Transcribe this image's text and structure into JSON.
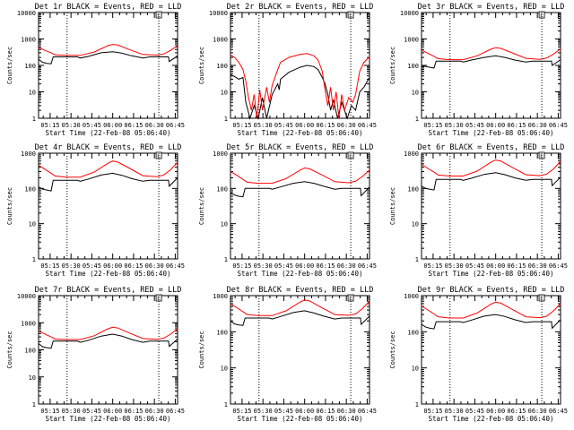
{
  "chart_data": [
    {
      "type": "line",
      "title": "Det 1r BLACK = Events, RED = LLD",
      "ylabel": "Counts/sec",
      "xlabel": "Start Time (22-Feb-08 05:06:40)",
      "x_ticks": [
        "05:15",
        "05:30",
        "05:45",
        "06:00",
        "06:15",
        "06:30",
        "06:45"
      ],
      "y_ticks": [
        "1",
        "10",
        "100",
        "1000",
        "10000"
      ],
      "yscale": "log",
      "ylim": [
        1,
        10000
      ],
      "xlim_minutes": [
        0,
        100
      ],
      "vlines_minutes": [
        20.5,
        86.5
      ],
      "marker": "E",
      "series": [
        {
          "name": "Events",
          "color": "#000000",
          "x": [
            0,
            3,
            6,
            9,
            10.5,
            20.5,
            28,
            30,
            36,
            45,
            53.3,
            60,
            67,
            75,
            80,
            86.5,
            93.5,
            94,
            100
          ],
          "y": [
            170,
            130,
            120,
            115,
            210,
            210,
            210,
            190,
            220,
            300,
            330,
            290,
            230,
            190,
            210,
            210,
            210,
            140,
            230
          ]
        },
        {
          "name": "LLD",
          "color": "#ff0000",
          "x": [
            0,
            5,
            9,
            12,
            20,
            30,
            40,
            50,
            53.3,
            57,
            65,
            75,
            85,
            90,
            95,
            100
          ],
          "y": [
            480,
            360,
            300,
            250,
            240,
            240,
            320,
            560,
            620,
            590,
            400,
            260,
            245,
            270,
            370,
            560
          ]
        }
      ]
    },
    {
      "type": "line",
      "title": "Det 2r BLACK = Events, RED = LLD",
      "ylabel": "Counts/sec",
      "xlabel": "Start Time (22-Feb-08 05:06:40)",
      "x_ticks": [
        "05:15",
        "05:30",
        "05:45",
        "06:00",
        "06:15",
        "06:30",
        "06:45"
      ],
      "y_ticks": [
        "1",
        "10",
        "100",
        "1000",
        "10000"
      ],
      "yscale": "log",
      "ylim": [
        1,
        10000
      ],
      "xlim_minutes": [
        0,
        100
      ],
      "vlines_minutes": [
        20.5,
        86.5
      ],
      "marker": "E",
      "series": [
        {
          "name": "Events",
          "color": "#000000",
          "x": [
            0,
            3,
            6,
            9,
            10,
            11,
            14,
            17,
            20,
            23,
            26,
            30,
            34,
            35,
            36,
            42,
            50,
            55,
            60,
            63,
            66,
            68,
            70,
            72,
            74,
            77,
            80,
            84,
            87,
            90,
            93,
            96,
            100
          ],
          "y": [
            45,
            38,
            30,
            35,
            12,
            4,
            1,
            3,
            1,
            6,
            1,
            8,
            20,
            12,
            30,
            55,
            85,
            100,
            90,
            70,
            35,
            20,
            8,
            2,
            5,
            1,
            4,
            1,
            3,
            2,
            10,
            15,
            35
          ]
        },
        {
          "name": "LLD",
          "color": "#ff0000",
          "x": [
            0,
            3,
            6,
            9,
            11,
            13,
            15,
            17,
            19,
            21,
            23,
            26,
            28,
            30,
            32,
            34,
            36,
            42,
            50,
            55,
            60,
            63,
            66,
            68,
            70,
            72,
            74,
            76,
            78,
            80,
            82,
            85,
            88,
            90,
            93,
            96,
            100
          ],
          "y": [
            250,
            200,
            130,
            70,
            25,
            6,
            2,
            8,
            1,
            12,
            2,
            15,
            4,
            18,
            35,
            70,
            130,
            200,
            260,
            280,
            230,
            160,
            60,
            12,
            3,
            15,
            2,
            10,
            1,
            8,
            2,
            6,
            4,
            8,
            60,
            130,
            210
          ]
        }
      ]
    },
    {
      "type": "line",
      "title": "Det 3r BLACK = Events, RED = LLD",
      "ylabel": "Counts/sec",
      "xlabel": "Start Time (22-Feb-08 05:06:40)",
      "x_ticks": [
        "05:15",
        "05:30",
        "05:45",
        "06:00",
        "06:15",
        "06:30",
        "06:45"
      ],
      "y_ticks": [
        "1",
        "10",
        "100",
        "1000",
        "10000"
      ],
      "yscale": "log",
      "ylim": [
        1,
        10000
      ],
      "xlim_minutes": [
        0,
        100
      ],
      "vlines_minutes": [
        20.5,
        86.5
      ],
      "marker": "E",
      "series": [
        {
          "name": "Events",
          "color": "#000000",
          "x": [
            0,
            3,
            6,
            9,
            10.5,
            20.5,
            28,
            30,
            36,
            45,
            53.3,
            60,
            67,
            75,
            80,
            86.5,
            93.5,
            94,
            100
          ],
          "y": [
            100,
            90,
            85,
            80,
            145,
            145,
            145,
            135,
            160,
            200,
            230,
            200,
            160,
            135,
            145,
            145,
            145,
            100,
            165
          ]
        },
        {
          "name": "LLD",
          "color": "#ff0000",
          "x": [
            0,
            5,
            9,
            12,
            20,
            30,
            40,
            50,
            53.3,
            57,
            65,
            75,
            85,
            90,
            95,
            100
          ],
          "y": [
            380,
            280,
            220,
            180,
            165,
            165,
            230,
            410,
            470,
            440,
            300,
            185,
            170,
            190,
            270,
            420
          ]
        }
      ]
    },
    {
      "type": "line",
      "title": "Det 4r BLACK = Events, RED = LLD",
      "ylabel": "Counts/sec",
      "xlabel": "Start Time (22-Feb-08 05:06:40)",
      "x_ticks": [
        "05:15",
        "05:30",
        "05:45",
        "06:00",
        "06:15",
        "06:30",
        "06:45"
      ],
      "y_ticks": [
        "1",
        "10",
        "100",
        "1000"
      ],
      "yscale": "log",
      "ylim": [
        1,
        1000
      ],
      "xlim_minutes": [
        0,
        100
      ],
      "vlines_minutes": [
        20.5,
        86.5
      ],
      "marker": "E",
      "series": [
        {
          "name": "Events",
          "color": "#000000",
          "x": [
            0,
            3,
            6,
            9,
            10.5,
            20.5,
            28,
            30,
            36,
            45,
            53.3,
            60,
            67,
            75,
            80,
            86.5,
            93.5,
            94,
            100
          ],
          "y": [
            110,
            95,
            90,
            85,
            170,
            170,
            170,
            160,
            185,
            240,
            270,
            235,
            190,
            160,
            170,
            170,
            170,
            115,
            200
          ]
        },
        {
          "name": "LLD",
          "color": "#ff0000",
          "x": [
            0,
            5,
            9,
            12,
            20,
            30,
            40,
            50,
            53.3,
            57,
            65,
            75,
            85,
            90,
            95,
            100
          ],
          "y": [
            450,
            340,
            270,
            225,
            210,
            210,
            290,
            520,
            600,
            560,
            380,
            230,
            215,
            240,
            340,
            550
          ]
        }
      ]
    },
    {
      "type": "line",
      "title": "Det 5r BLACK = Events, RED = LLD",
      "ylabel": "Counts/sec",
      "xlabel": "Start Time (22-Feb-08 05:06:40)",
      "x_ticks": [
        "05:15",
        "05:30",
        "05:45",
        "06:00",
        "06:15",
        "06:30",
        "06:45"
      ],
      "y_ticks": [
        "1",
        "10",
        "100",
        "1000"
      ],
      "yscale": "log",
      "ylim": [
        1,
        1000
      ],
      "xlim_minutes": [
        0,
        100
      ],
      "vlines_minutes": [
        20.5,
        86.5
      ],
      "marker": "E",
      "series": [
        {
          "name": "Events",
          "color": "#000000",
          "x": [
            0,
            3,
            6,
            9,
            10.5,
            20.5,
            28,
            30,
            36,
            45,
            53.3,
            60,
            67,
            75,
            80,
            86.5,
            93.5,
            94,
            100
          ],
          "y": [
            75,
            65,
            60,
            58,
            100,
            100,
            100,
            95,
            110,
            140,
            155,
            140,
            115,
            95,
            100,
            100,
            100,
            62,
            110
          ]
        },
        {
          "name": "LLD",
          "color": "#ff0000",
          "x": [
            0,
            5,
            9,
            12,
            20,
            30,
            40,
            50,
            53.3,
            57,
            65,
            75,
            85,
            90,
            95,
            100
          ],
          "y": [
            300,
            230,
            180,
            150,
            140,
            140,
            190,
            330,
            380,
            360,
            250,
            155,
            145,
            160,
            220,
            330
          ]
        }
      ]
    },
    {
      "type": "line",
      "title": "Det 6r BLACK = Events, RED = LLD",
      "ylabel": "Counts/sec",
      "xlabel": "Start Time (22-Feb-08 05:06:40)",
      "x_ticks": [
        "05:15",
        "05:30",
        "05:45",
        "06:00",
        "06:15",
        "06:30",
        "06:45"
      ],
      "y_ticks": [
        "1",
        "10",
        "100",
        "1000"
      ],
      "yscale": "log",
      "ylim": [
        1,
        1000
      ],
      "xlim_minutes": [
        0,
        100
      ],
      "vlines_minutes": [
        20.5,
        86.5
      ],
      "marker": "E",
      "series": [
        {
          "name": "Events",
          "color": "#000000",
          "x": [
            0,
            3,
            6,
            9,
            10.5,
            20.5,
            28,
            30,
            36,
            45,
            53.3,
            60,
            67,
            75,
            80,
            86.5,
            93.5,
            94,
            100
          ],
          "y": [
            115,
            100,
            95,
            90,
            180,
            180,
            180,
            170,
            195,
            250,
            280,
            245,
            200,
            170,
            180,
            180,
            180,
            120,
            210
          ]
        },
        {
          "name": "LLD",
          "color": "#ff0000",
          "x": [
            0,
            5,
            9,
            12,
            20,
            30,
            40,
            50,
            53.3,
            57,
            65,
            75,
            85,
            90,
            95,
            100
          ],
          "y": [
            480,
            360,
            290,
            240,
            225,
            225,
            310,
            560,
            640,
            600,
            400,
            245,
            230,
            255,
            360,
            590
          ]
        }
      ]
    },
    {
      "type": "line",
      "title": "Det 7r BLACK = Events, RED = LLD",
      "ylabel": "Counts/sec",
      "xlabel": "Start Time (22-Feb-08 05:06:40)",
      "x_ticks": [
        "05:15",
        "05:30",
        "05:45",
        "06:00",
        "06:15",
        "06:30",
        "06:45"
      ],
      "y_ticks": [
        "1",
        "10",
        "100",
        "1000",
        "10000"
      ],
      "yscale": "log",
      "ylim": [
        1,
        10000
      ],
      "xlim_minutes": [
        0,
        100
      ],
      "vlines_minutes": [
        20.5,
        86.5
      ],
      "marker": "E",
      "series": [
        {
          "name": "Events",
          "color": "#000000",
          "x": [
            0,
            3,
            6,
            9,
            10.5,
            20.5,
            28,
            30,
            36,
            45,
            53.3,
            60,
            67,
            75,
            80,
            86.5,
            93.5,
            94,
            100
          ],
          "y": [
            170,
            130,
            120,
            115,
            210,
            210,
            210,
            190,
            225,
            320,
            380,
            320,
            240,
            190,
            210,
            210,
            210,
            135,
            250
          ]
        },
        {
          "name": "LLD",
          "color": "#ff0000",
          "x": [
            0,
            5,
            9,
            12,
            20,
            30,
            40,
            50,
            53.3,
            57,
            65,
            75,
            85,
            90,
            95,
            100
          ],
          "y": [
            500,
            370,
            300,
            250,
            240,
            240,
            330,
            600,
            680,
            640,
            420,
            260,
            245,
            270,
            380,
            600
          ]
        }
      ]
    },
    {
      "type": "line",
      "title": "Det 8r BLACK = Events, RED = LLD",
      "ylabel": "Counts/sec",
      "xlabel": "Start Time (22-Feb-08 05:06:40)",
      "x_ticks": [
        "05:15",
        "05:30",
        "05:45",
        "06:00",
        "06:15",
        "06:30",
        "06:45"
      ],
      "y_ticks": [
        "1",
        "10",
        "100",
        "1000"
      ],
      "yscale": "log",
      "ylim": [
        1,
        1000
      ],
      "xlim_minutes": [
        0,
        100
      ],
      "vlines_minutes": [
        20.5,
        86.5
      ],
      "marker": "E",
      "series": [
        {
          "name": "Events",
          "color": "#000000",
          "x": [
            0,
            3,
            6,
            9,
            10.5,
            20.5,
            28,
            30,
            36,
            45,
            53.3,
            60,
            67,
            75,
            80,
            86.5,
            93.5,
            94,
            100
          ],
          "y": [
            200,
            165,
            155,
            150,
            240,
            240,
            240,
            225,
            265,
            340,
            380,
            330,
            270,
            225,
            240,
            240,
            240,
            160,
            270
          ]
        },
        {
          "name": "LLD",
          "color": "#ff0000",
          "x": [
            0,
            5,
            9,
            12,
            20,
            30,
            40,
            50,
            53.3,
            57,
            65,
            75,
            85,
            90,
            95,
            100
          ],
          "y": [
            600,
            450,
            360,
            300,
            280,
            280,
            380,
            660,
            760,
            710,
            480,
            300,
            285,
            310,
            440,
            700
          ]
        }
      ]
    },
    {
      "type": "line",
      "title": "Det 9r BLACK = Events, RED = LLD",
      "ylabel": "Counts/sec",
      "xlabel": "Start Time (22-Feb-08 05:06:40)",
      "x_ticks": [
        "05:15",
        "05:30",
        "05:45",
        "06:00",
        "06:15",
        "06:30",
        "06:45"
      ],
      "y_ticks": [
        "1",
        "10",
        "100",
        "1000"
      ],
      "yscale": "log",
      "ylim": [
        1,
        1000
      ],
      "xlim_minutes": [
        0,
        100
      ],
      "vlines_minutes": [
        20.5,
        86.5
      ],
      "marker": "E",
      "series": [
        {
          "name": "Events",
          "color": "#000000",
          "x": [
            0,
            3,
            6,
            9,
            10.5,
            20.5,
            28,
            30,
            36,
            45,
            53.3,
            60,
            67,
            75,
            80,
            86.5,
            93.5,
            94,
            100
          ],
          "y": [
            160,
            135,
            125,
            120,
            190,
            190,
            190,
            180,
            210,
            270,
            300,
            265,
            215,
            180,
            190,
            190,
            190,
            125,
            215
          ]
        },
        {
          "name": "LLD",
          "color": "#ff0000",
          "x": [
            0,
            5,
            9,
            12,
            20,
            30,
            40,
            50,
            53.3,
            57,
            65,
            75,
            85,
            90,
            95,
            100
          ],
          "y": [
            520,
            390,
            310,
            260,
            240,
            240,
            330,
            580,
            660,
            620,
            420,
            260,
            245,
            270,
            380,
            600
          ]
        }
      ]
    }
  ]
}
